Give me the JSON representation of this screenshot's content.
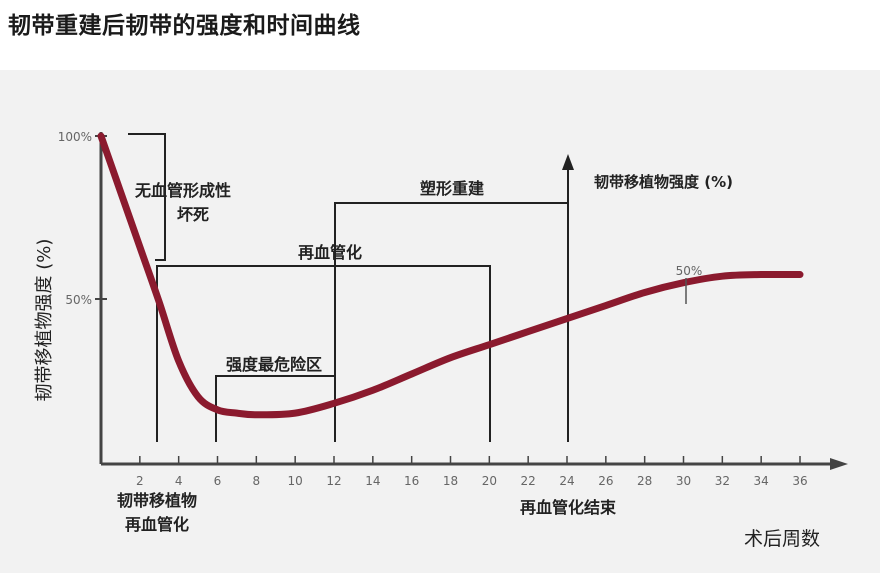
{
  "title": "韧带重建后韧带的强度和时间曲线",
  "chart_data": {
    "type": "line",
    "ylabel": "韧带移植物强度 (%)",
    "xlabel": "术后周数",
    "y_ticks": [
      "100%",
      "50%"
    ],
    "x_ticks": [
      "2",
      "4",
      "6",
      "8",
      "10",
      "12",
      "14",
      "16",
      "18",
      "20",
      "22",
      "24",
      "26",
      "28",
      "30",
      "32",
      "34",
      "36"
    ],
    "xlim": [
      0,
      38
    ],
    "ylim": [
      0,
      100
    ],
    "series": [
      {
        "color": "#8b1a2e",
        "x": [
          0,
          1,
          2,
          3,
          4,
          5,
          6,
          7,
          8,
          10,
          12,
          14,
          16,
          18,
          20,
          22,
          24,
          26,
          28,
          30,
          32,
          34,
          36
        ],
        "y": [
          100,
          83,
          66,
          49,
          31,
          20,
          16,
          15,
          14.5,
          15,
          18,
          22,
          27,
          32,
          36,
          40,
          44,
          48,
          52,
          55,
          57,
          57.5,
          57.5
        ]
      }
    ],
    "annotations": {
      "necrosis": "无血管形成性\n坏死",
      "remodel": "塑形重建",
      "revasc": "再血管化",
      "weakest": "强度最危险区",
      "axis_arrow_label": "韧带移植物强度 (%)",
      "point_50": "50%",
      "graft_revasc": "韧带移植物\n再血管化",
      "revasc_end": "再血管化结束"
    }
  }
}
